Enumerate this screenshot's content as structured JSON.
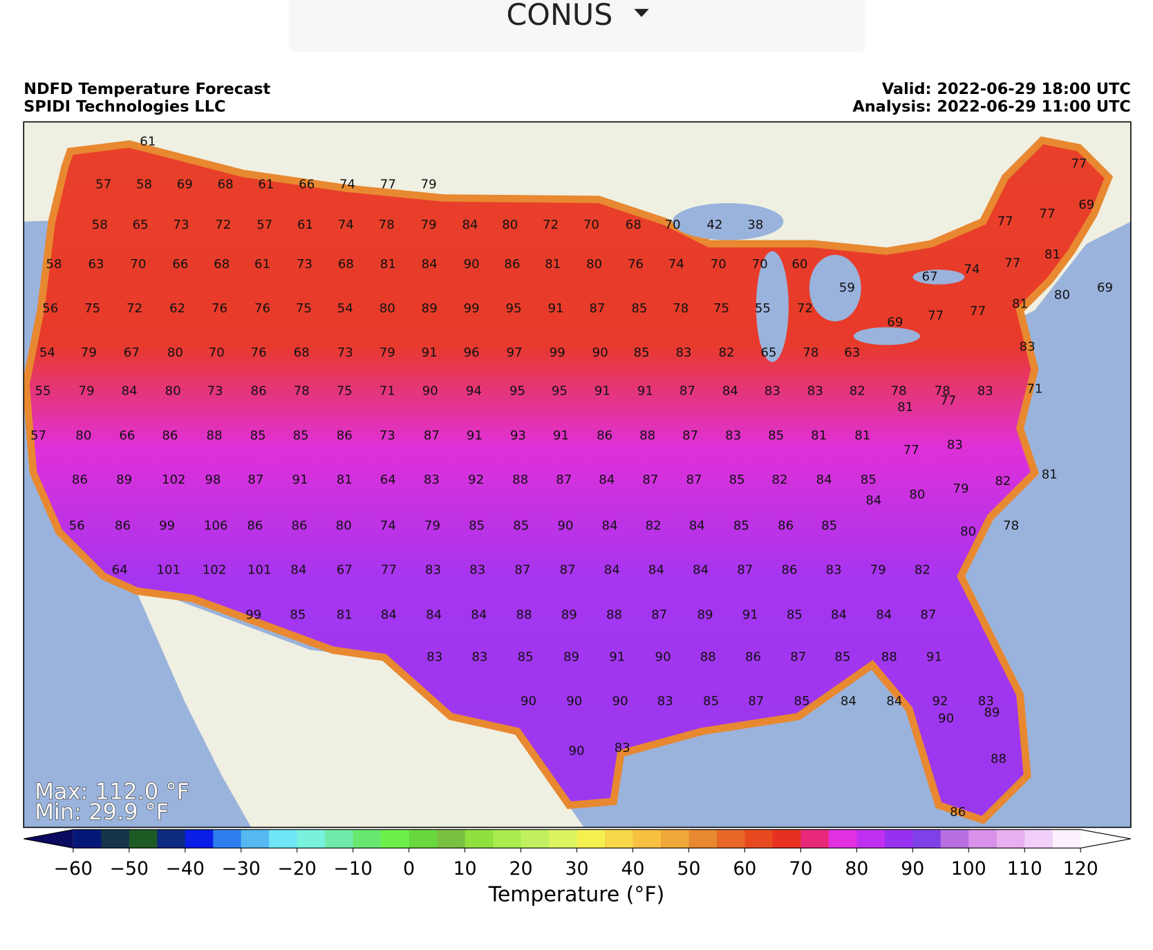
{
  "dropdown": {
    "label": "CONUS"
  },
  "header": {
    "title": "NDFD Temperature Forecast",
    "source": "SPIDI Technologies LLC",
    "valid": "Valid: 2022-06-29 18:00 UTC",
    "analysis": "Analysis: 2022-06-29 11:00 UTC"
  },
  "map": {
    "max_label": "Max: 112.0 °F",
    "min_label": "Min: 29.9 °F",
    "stations": [
      [
        61
      ],
      [
        57,
        58,
        69,
        68,
        61,
        66,
        74,
        77,
        79
      ],
      [
        58,
        65,
        73,
        72,
        57,
        61,
        74,
        78,
        79,
        84,
        80,
        72,
        70,
        68,
        70,
        42,
        38
      ],
      [
        58,
        63,
        70,
        66,
        68,
        61,
        73,
        68,
        81,
        84,
        90,
        86,
        81,
        80,
        76,
        74,
        70,
        70,
        60
      ],
      [
        56,
        75,
        72,
        62,
        76,
        76,
        75,
        54,
        80,
        89,
        99,
        95,
        91,
        87,
        85,
        78,
        75,
        55,
        72
      ],
      [
        54,
        79,
        67,
        80,
        70,
        76,
        68,
        73,
        79,
        91,
        96,
        97,
        99,
        90,
        85,
        83,
        82,
        65,
        78,
        63
      ],
      [
        55,
        79,
        84,
        80,
        73,
        86,
        78,
        75,
        71,
        90,
        94,
        95,
        95,
        91,
        91,
        87,
        84,
        83,
        83,
        82,
        78,
        78,
        83
      ],
      [
        57,
        80,
        66,
        86,
        88,
        85,
        85,
        86,
        73,
        87,
        91,
        93,
        91,
        86,
        88,
        87,
        83,
        85,
        81,
        81
      ],
      [
        86,
        89,
        102,
        98,
        87,
        91,
        81,
        64,
        83,
        92,
        88,
        87,
        84,
        87,
        87,
        85,
        82,
        84,
        85
      ],
      [
        56,
        86,
        99,
        106,
        86,
        86,
        80,
        74,
        79,
        85,
        85,
        90,
        84,
        82,
        84,
        85,
        86,
        85
      ],
      [
        64,
        101,
        102,
        101,
        84,
        67,
        77,
        83,
        83,
        87,
        87,
        84,
        84,
        84,
        87,
        86,
        83,
        79,
        82
      ],
      [
        99,
        85,
        81,
        84,
        84,
        84,
        88,
        89,
        88,
        87,
        89,
        91,
        85,
        84,
        84,
        87
      ],
      [
        83,
        83,
        85,
        89,
        91,
        90,
        88,
        86,
        87,
        85,
        88,
        91
      ],
      [
        90,
        90,
        90,
        83,
        85,
        87,
        85,
        84,
        84,
        92,
        83
      ],
      [
        67,
        74,
        77,
        81,
        77,
        77,
        77,
        69,
        59,
        69,
        80,
        81,
        77,
        77,
        69,
        83,
        71,
        81,
        77,
        77,
        83,
        82,
        81,
        84,
        80,
        79,
        80,
        78,
        90,
        89,
        90,
        83,
        88,
        86
      ]
    ]
  },
  "colorbar": {
    "label": "Temperature (°F)",
    "lim": [
      -60,
      120
    ],
    "ticks": [
      {
        "value": -60,
        "label": "−60"
      },
      {
        "value": -50,
        "label": "−50"
      },
      {
        "value": -40,
        "label": "−40"
      },
      {
        "value": -30,
        "label": "−30"
      },
      {
        "value": -20,
        "label": "−20"
      },
      {
        "value": -10,
        "label": "−10"
      },
      0,
      10,
      20,
      30,
      40,
      50,
      60,
      70,
      80,
      90,
      100,
      110,
      120
    ],
    "colors": [
      "#06177a",
      "#16344a",
      "#1e5a24",
      "#0c2a80",
      "#0a1ee8",
      "#2e7ef0",
      "#55b8f0",
      "#6ee6f8",
      "#78f2dc",
      "#70eaa8",
      "#68e870",
      "#6ef04a",
      "#68d83e",
      "#7ac040",
      "#90e040",
      "#a8ec50",
      "#c0f060",
      "#dcf460",
      "#f4f050",
      "#f8d848",
      "#f8c040",
      "#f0a838",
      "#e88830",
      "#e86828",
      "#e84a20",
      "#e83020",
      "#e82878",
      "#e030e0",
      "#c030f0",
      "#9830f0",
      "#8040e8",
      "#b870e0",
      "#d890e8",
      "#e8b0f0",
      "#f0d0f8",
      "#fcf0fc"
    ],
    "under_color": "#0a0a60",
    "over_color": "#ffffff"
  }
}
